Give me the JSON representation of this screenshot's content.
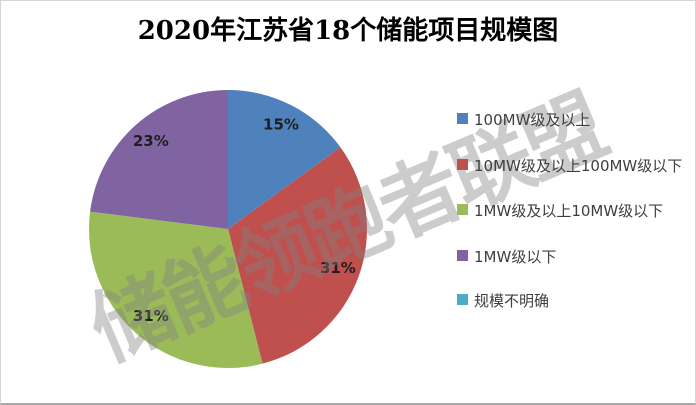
{
  "title": "2020年江苏省18个储能项目规模图",
  "watermark": "储能领跑者联盟",
  "chart_data": {
    "type": "pie",
    "title": "2020年江苏省18个储能项目规模图",
    "categories": [
      "100MW级及以上",
      "10MW级及以上100MW级以下",
      "1MW级及以上10MW级以下",
      "1MW级以下",
      "规模不明确"
    ],
    "values": [
      15,
      31,
      31,
      23,
      0
    ],
    "unit": "percent",
    "data_labels": [
      "15%",
      "31%",
      "31%",
      "23%",
      ""
    ],
    "colors": [
      "#4F81BD",
      "#C0504D",
      "#9BBB59",
      "#8064A2",
      "#4BACC6"
    ],
    "start_angle_deg": 0,
    "direction": "clockwise",
    "legend_position": "right",
    "label_color": "#1f1f1f",
    "grid": "off"
  }
}
